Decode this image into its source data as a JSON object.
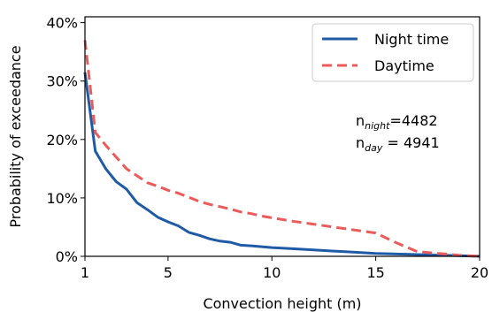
{
  "chart_data": {
    "type": "line",
    "xlabel": "Convection height (m)",
    "ylabel": "Probability of exceedance",
    "xlim": [
      1,
      20
    ],
    "ylim": [
      0,
      41
    ],
    "x_ticks": [
      1,
      5,
      10,
      15,
      20
    ],
    "x_tick_labels": [
      "1",
      "5",
      "10",
      "15",
      "20"
    ],
    "y_ticks": [
      0,
      10,
      20,
      30,
      40
    ],
    "y_tick_labels": [
      "0%",
      "10%",
      "20%",
      "30%",
      "40%"
    ],
    "grid": false,
    "legend_position": "top-right",
    "series": [
      {
        "name": "Night time",
        "color": "#1f5aa6",
        "style": "solid",
        "x": [
          1,
          1.5,
          2,
          2.5,
          3,
          3.5,
          4,
          4.5,
          5,
          5.5,
          6,
          6.5,
          7,
          7.5,
          8,
          8.5,
          9,
          10,
          11,
          12,
          13,
          14,
          15,
          16,
          17,
          18,
          19,
          20
        ],
        "y": [
          31.5,
          18,
          15,
          12.8,
          11.5,
          9.2,
          8,
          6.7,
          5.9,
          5.2,
          4.1,
          3.6,
          3,
          2.6,
          2.4,
          1.9,
          1.8,
          1.5,
          1.3,
          1.1,
          0.9,
          0.7,
          0.5,
          0.4,
          0.3,
          0.2,
          0.1,
          0
        ]
      },
      {
        "name": "Daytime",
        "color": "#ec5a5a",
        "style": "dashed",
        "x": [
          1,
          1.5,
          2,
          2.5,
          3,
          3.5,
          4,
          4.5,
          5,
          5.5,
          6,
          6.5,
          7,
          7.5,
          8,
          8.5,
          9,
          9.5,
          10,
          11,
          12,
          13,
          14,
          15,
          16,
          17,
          18,
          19,
          20
        ],
        "y": [
          37,
          21.2,
          19,
          17,
          15,
          13.8,
          12.6,
          12,
          11.3,
          10.8,
          10.1,
          9.4,
          8.9,
          8.5,
          8.1,
          7.6,
          7.3,
          6.9,
          6.6,
          6.0,
          5.5,
          5.0,
          4.5,
          4.0,
          2.3,
          0.8,
          0.5,
          0.2,
          0
        ]
      }
    ],
    "annotations": [
      {
        "main": "n",
        "sub": "night",
        "suffix": "=4482"
      },
      {
        "main": "n",
        "sub": "day",
        "suffix": " = 4941"
      }
    ]
  }
}
